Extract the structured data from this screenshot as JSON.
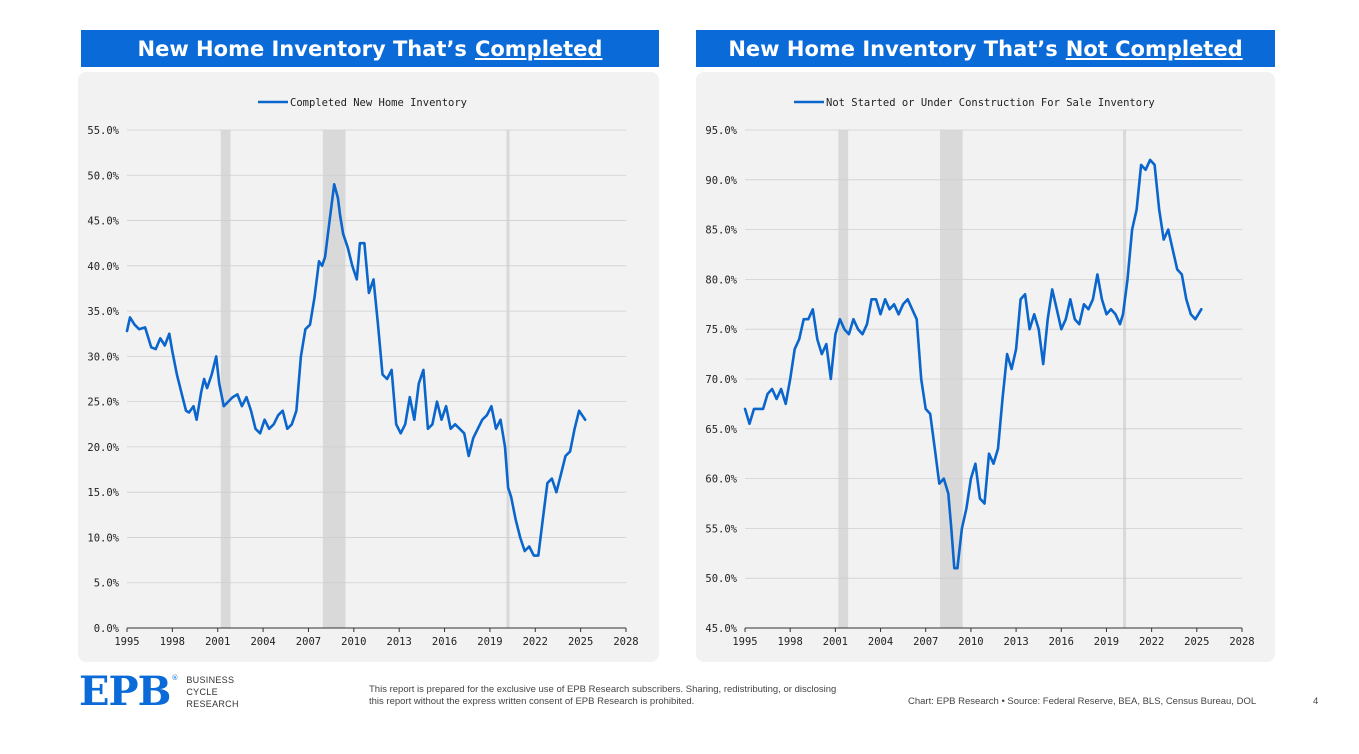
{
  "left_panel": {
    "title_prefix": "New Home Inventory That’s",
    "title_underlined": "Completed"
  },
  "right_panel": {
    "title_prefix": "New Home Inventory That’s",
    "title_underlined": "Not Completed"
  },
  "chart_data": [
    {
      "type": "line",
      "title": "",
      "xlabel": "",
      "ylabel": "",
      "xlim": [
        1995,
        2028
      ],
      "ylim": [
        0,
        55
      ],
      "x_ticks": [
        1995,
        1998,
        2001,
        2004,
        2007,
        2010,
        2013,
        2016,
        2019,
        2022,
        2025,
        2028
      ],
      "y_ticks": [
        0,
        5,
        10,
        15,
        20,
        25,
        30,
        35,
        40,
        45,
        50,
        55
      ],
      "y_tick_labels": [
        "0.0%",
        "5.0%",
        "10.0%",
        "15.0%",
        "20.0%",
        "25.0%",
        "30.0%",
        "35.0%",
        "40.0%",
        "45.0%",
        "50.0%",
        "55.0%"
      ],
      "grid": "horizontal",
      "legend_position": "top-center",
      "recession_shading": [
        [
          2001.2,
          2001.85
        ],
        [
          2007.95,
          2009.45
        ],
        [
          2020.1,
          2020.3
        ]
      ],
      "series": [
        {
          "name": "Completed New Home Inventory",
          "color": "#0a66cc",
          "x": [
            1995.0,
            1995.2,
            1995.5,
            1995.8,
            1996.2,
            1996.6,
            1996.9,
            1997.2,
            1997.5,
            1997.8,
            1998.0,
            1998.3,
            1998.6,
            1998.9,
            1999.1,
            1999.4,
            1999.6,
            1999.9,
            2000.1,
            2000.3,
            2000.6,
            2000.9,
            2001.1,
            2001.4,
            2001.7,
            2002.0,
            2002.3,
            2002.6,
            2002.9,
            2003.2,
            2003.5,
            2003.8,
            2004.1,
            2004.4,
            2004.7,
            2005.0,
            2005.3,
            2005.6,
            2005.9,
            2006.2,
            2006.5,
            2006.8,
            2007.1,
            2007.4,
            2007.7,
            2007.9,
            2008.1,
            2008.4,
            2008.7,
            2008.95,
            2009.1,
            2009.3,
            2009.6,
            2009.9,
            2010.2,
            2010.4,
            2010.7,
            2011.0,
            2011.3,
            2011.6,
            2011.9,
            2012.2,
            2012.5,
            2012.8,
            2013.1,
            2013.4,
            2013.7,
            2014.0,
            2014.3,
            2014.6,
            2014.9,
            2015.2,
            2015.5,
            2015.8,
            2016.1,
            2016.4,
            2016.7,
            2017.0,
            2017.3,
            2017.6,
            2017.9,
            2018.2,
            2018.5,
            2018.8,
            2019.1,
            2019.4,
            2019.7,
            2020.0,
            2020.2,
            2020.4,
            2020.7,
            2021.0,
            2021.3,
            2021.6,
            2021.9,
            2022.2,
            2022.5,
            2022.8,
            2023.1,
            2023.4,
            2023.7,
            2024.0,
            2024.3,
            2024.6,
            2024.9,
            2025.1,
            2025.3
          ],
          "values": [
            32.8,
            34.3,
            33.5,
            33.0,
            33.2,
            31.0,
            30.8,
            32.0,
            31.2,
            32.5,
            30.5,
            28.0,
            26.0,
            24.0,
            23.8,
            24.5,
            23.0,
            26.0,
            27.5,
            26.5,
            28.0,
            30.0,
            27.0,
            24.5,
            25.0,
            25.5,
            25.8,
            24.5,
            25.5,
            24.0,
            22.0,
            21.5,
            23.0,
            22.0,
            22.5,
            23.5,
            24.0,
            22.0,
            22.5,
            24.0,
            30.0,
            33.0,
            33.5,
            36.5,
            40.5,
            40.0,
            41.0,
            45.0,
            49.0,
            47.5,
            45.5,
            43.5,
            42.0,
            40.0,
            38.5,
            42.5,
            42.5,
            37.0,
            38.5,
            33.5,
            28.0,
            27.5,
            28.5,
            22.5,
            21.5,
            22.5,
            25.5,
            23.0,
            27.0,
            28.5,
            22.0,
            22.5,
            25.0,
            23.0,
            24.5,
            22.0,
            22.5,
            22.0,
            21.5,
            19.0,
            21.0,
            22.0,
            23.0,
            23.5,
            24.5,
            22.0,
            23.0,
            20.0,
            15.5,
            14.5,
            12.0,
            10.0,
            8.5,
            9.0,
            8.0,
            8.0,
            12.0,
            16.0,
            16.5,
            15.0,
            17.0,
            19.0,
            19.5,
            22.0,
            24.0,
            23.5,
            23.0
          ]
        }
      ]
    },
    {
      "type": "line",
      "title": "",
      "xlabel": "",
      "ylabel": "",
      "xlim": [
        1995,
        2028
      ],
      "ylim": [
        45,
        95
      ],
      "x_ticks": [
        1995,
        1998,
        2001,
        2004,
        2007,
        2010,
        2013,
        2016,
        2019,
        2022,
        2025,
        2028
      ],
      "y_ticks": [
        45,
        50,
        55,
        60,
        65,
        70,
        75,
        80,
        85,
        90,
        95
      ],
      "y_tick_labels": [
        "45.0%",
        "50.0%",
        "55.0%",
        "60.0%",
        "65.0%",
        "70.0%",
        "75.0%",
        "80.0%",
        "85.0%",
        "90.0%",
        "95.0%"
      ],
      "grid": "horizontal",
      "legend_position": "top-center",
      "recession_shading": [
        [
          2001.2,
          2001.85
        ],
        [
          2007.95,
          2009.45
        ],
        [
          2020.1,
          2020.3
        ]
      ],
      "series": [
        {
          "name": "Not Started or Under Construction For Sale Inventory",
          "color": "#0a66cc",
          "x": [
            1995.0,
            1995.3,
            1995.6,
            1995.9,
            1996.2,
            1996.5,
            1996.8,
            1997.1,
            1997.4,
            1997.7,
            1998.0,
            1998.3,
            1998.6,
            1998.9,
            1999.2,
            1999.5,
            1999.8,
            2000.1,
            2000.4,
            2000.7,
            2001.0,
            2001.3,
            2001.6,
            2001.9,
            2002.2,
            2002.5,
            2002.8,
            2003.1,
            2003.4,
            2003.7,
            2004.0,
            2004.3,
            2004.6,
            2004.9,
            2005.2,
            2005.5,
            2005.8,
            2006.1,
            2006.4,
            2006.7,
            2007.0,
            2007.3,
            2007.6,
            2007.9,
            2008.2,
            2008.5,
            2008.7,
            2008.9,
            2009.1,
            2009.4,
            2009.7,
            2010.0,
            2010.3,
            2010.6,
            2010.9,
            2011.2,
            2011.5,
            2011.8,
            2012.1,
            2012.4,
            2012.7,
            2013.0,
            2013.3,
            2013.6,
            2013.9,
            2014.2,
            2014.5,
            2014.8,
            2015.1,
            2015.4,
            2015.7,
            2016.0,
            2016.3,
            2016.6,
            2016.9,
            2017.2,
            2017.5,
            2017.8,
            2018.1,
            2018.4,
            2018.7,
            2019.0,
            2019.3,
            2019.6,
            2019.9,
            2020.1,
            2020.4,
            2020.7,
            2021.0,
            2021.3,
            2021.6,
            2021.9,
            2022.2,
            2022.5,
            2022.8,
            2023.1,
            2023.4,
            2023.7,
            2024.0,
            2024.3,
            2024.6,
            2024.9,
            2025.1,
            2025.3
          ],
          "values": [
            67.0,
            65.5,
            67.0,
            67.0,
            67.0,
            68.5,
            69.0,
            68.0,
            69.0,
            67.5,
            70.0,
            73.0,
            74.0,
            76.0,
            76.0,
            77.0,
            74.0,
            72.5,
            73.5,
            70.0,
            74.5,
            76.0,
            75.0,
            74.5,
            76.0,
            75.0,
            74.5,
            75.5,
            78.0,
            78.0,
            76.5,
            78.0,
            77.0,
            77.5,
            76.5,
            77.5,
            78.0,
            77.0,
            76.0,
            70.0,
            67.0,
            66.5,
            63.0,
            59.5,
            60.0,
            58.5,
            55.0,
            51.0,
            51.0,
            55.0,
            57.0,
            60.0,
            61.5,
            58.0,
            57.5,
            62.5,
            61.5,
            63.0,
            68.0,
            72.5,
            71.0,
            73.0,
            78.0,
            78.5,
            75.0,
            76.5,
            75.0,
            71.5,
            76.0,
            79.0,
            77.0,
            75.0,
            76.0,
            78.0,
            76.0,
            75.5,
            77.5,
            77.0,
            78.0,
            80.5,
            78.0,
            76.5,
            77.0,
            76.5,
            75.5,
            76.5,
            80.0,
            85.0,
            87.0,
            91.5,
            91.0,
            92.0,
            91.5,
            87.0,
            84.0,
            85.0,
            83.0,
            81.0,
            80.5,
            78.0,
            76.5,
            76.0,
            76.5,
            77.0
          ]
        }
      ]
    }
  ],
  "footer": {
    "logo_text": "EPB",
    "logo_reg": "®",
    "logo_words": [
      "BUSINESS",
      "CYCLE",
      "RESEARCH"
    ],
    "disclaimer": "This report is prepared for the exclusive use of EPB Research subscribers. Sharing, redistributing, or disclosing this report without the express written consent of EPB Research is prohibited.",
    "source": "Chart: EPB Research  •  Source: Federal Reserve, BEA, BLS, Census Bureau, DOL",
    "page_number": "4"
  }
}
